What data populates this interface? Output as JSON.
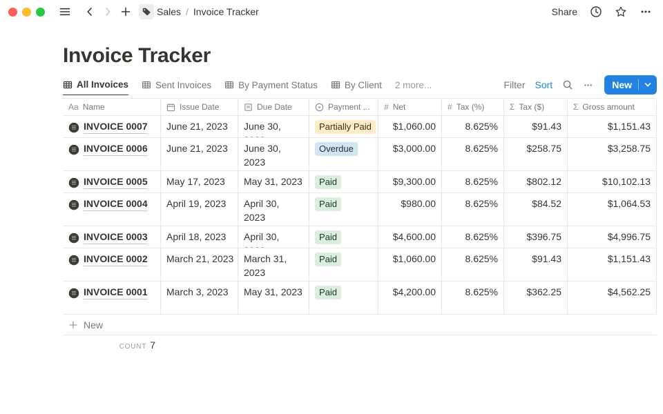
{
  "topbar": {
    "breadcrumb": {
      "space": "Sales",
      "separator": "/",
      "page": "Invoice Tracker"
    },
    "share_label": "Share"
  },
  "page": {
    "title": "Invoice Tracker"
  },
  "toolbar": {
    "tabs": [
      {
        "label": "All Invoices",
        "icon": "table",
        "active": true
      },
      {
        "label": "Sent Invoices",
        "icon": "table",
        "active": false
      },
      {
        "label": "By Payment Status",
        "icon": "table",
        "active": false
      },
      {
        "label": "By Client",
        "icon": "table",
        "active": false
      },
      {
        "label": "2 more...",
        "icon": null,
        "active": false
      }
    ],
    "filter_label": "Filter",
    "sort_label": "Sort",
    "new_label": "New"
  },
  "table": {
    "columns": [
      {
        "label": "Name",
        "icon": "text",
        "align": "left"
      },
      {
        "label": "Issue Date",
        "icon": "calendar",
        "align": "left"
      },
      {
        "label": "Due Date",
        "icon": "document",
        "align": "left"
      },
      {
        "label": "Payment ...",
        "icon": "select",
        "align": "left"
      },
      {
        "label": "Net",
        "icon": "number",
        "align": "right"
      },
      {
        "label": "Tax (%)",
        "icon": "number",
        "align": "right"
      },
      {
        "label": "Tax ($)",
        "icon": "formula",
        "align": "right"
      },
      {
        "label": "Gross amount",
        "icon": "formula",
        "align": "right"
      }
    ],
    "rows": [
      {
        "name": "INVOICE 0007",
        "issue_date": "June 21, 2023",
        "due_date": "June 30, 2023",
        "payment_status": "Partially Paid",
        "status_color": "yellow",
        "net": "$1,060.00",
        "tax_pct": "8.625%",
        "tax_usd": "$91.43",
        "gross": "$1,151.43",
        "tall": false
      },
      {
        "name": "INVOICE 0006",
        "issue_date": "June 21, 2023",
        "due_date": "June 30, 2023",
        "payment_status": "Overdue",
        "status_color": "blue",
        "net": "$3,000.00",
        "tax_pct": "8.625%",
        "tax_usd": "$258.75",
        "gross": "$3,258.75",
        "tall": true
      },
      {
        "name": "INVOICE 0005",
        "issue_date": "May 17, 2023",
        "due_date": "May 31, 2023",
        "payment_status": "Paid",
        "status_color": "green",
        "net": "$9,300.00",
        "tax_pct": "8.625%",
        "tax_usd": "$802.12",
        "gross": "$10,102.13",
        "tall": false
      },
      {
        "name": "INVOICE 0004",
        "issue_date": "April 19, 2023",
        "due_date": "April 30, 2023",
        "payment_status": "Paid",
        "status_color": "green",
        "net": "$980.00",
        "tax_pct": "8.625%",
        "tax_usd": "$84.52",
        "gross": "$1,064.53",
        "tall": true
      },
      {
        "name": "INVOICE 0003",
        "issue_date": "April 18, 2023",
        "due_date": "April 30, 2023",
        "payment_status": "Paid",
        "status_color": "green",
        "net": "$4,600.00",
        "tax_pct": "8.625%",
        "tax_usd": "$396.75",
        "gross": "$4,996.75",
        "tall": false
      },
      {
        "name": "INVOICE 0002",
        "issue_date": "March 21, 2023",
        "due_date": "March 31, 2023",
        "payment_status": "Paid",
        "status_color": "green",
        "net": "$1,060.00",
        "tax_pct": "8.625%",
        "tax_usd": "$91.43",
        "gross": "$1,151.43",
        "tall": true
      },
      {
        "name": "INVOICE 0001",
        "issue_date": "March 3, 2023",
        "due_date": "May 31, 2023",
        "payment_status": "Paid",
        "status_color": "green",
        "net": "$4,200.00",
        "tax_pct": "8.625%",
        "tax_usd": "$362.25",
        "gross": "$4,562.25",
        "tall": true
      }
    ],
    "new_row_label": "New",
    "count_label": "COUNT",
    "count_value": "7"
  },
  "colors": {
    "accent_blue": "#2383e2",
    "badge_yellow_bg": "#fdecc8",
    "badge_blue_bg": "#d3e5ef",
    "badge_green_bg": "#dbeddb",
    "traffic_red": "#ff5f57",
    "traffic_yellow": "#febc2e",
    "traffic_green": "#28c840"
  }
}
